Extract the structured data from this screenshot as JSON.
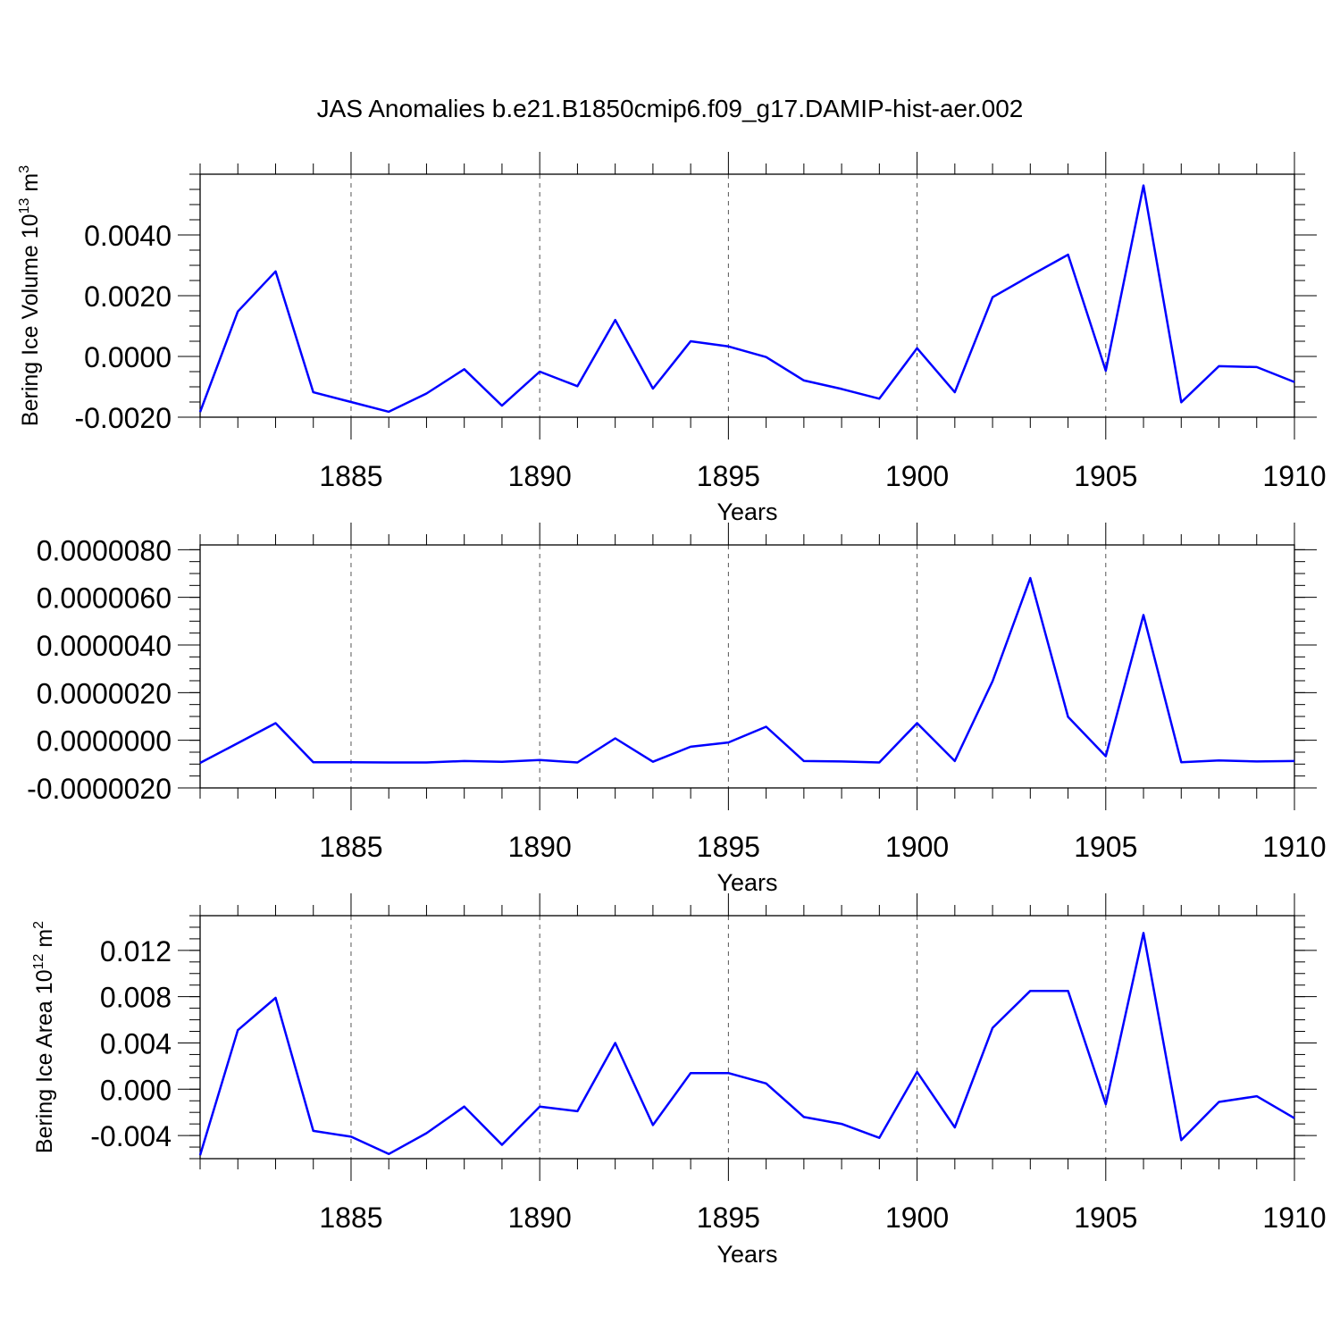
{
  "figure_title": "JAS Anomalies b.e21.B1850cmip6.f09_g17.DAMIP-hist-aer.002",
  "colors": {
    "line": "#0000ff",
    "axis": "#000000",
    "grid": "#555555"
  },
  "chart_data": [
    {
      "type": "line",
      "title": "JAS Anomalies b.e21.B1850cmip6.f09_g17.DAMIP-hist-aer.002",
      "xlabel": "Years",
      "ylabel_main": "Bering Ice Volume 10",
      "ylabel_exp": "13",
      "ylabel_unit": " m",
      "ylabel_unit_exp": "3",
      "xlim": [
        1881,
        1910
      ],
      "ylim": [
        -0.002,
        0.006
      ],
      "xticks": [
        1885,
        1890,
        1895,
        1900,
        1905,
        1910
      ],
      "xtick_labels": [
        "1885",
        "1890",
        "1895",
        "1900",
        "1905",
        "1910"
      ],
      "yticks": [
        -0.002,
        0.0,
        0.002,
        0.004
      ],
      "ytick_labels": [
        "-0.0020",
        "0.0000",
        "0.0020",
        "0.0040"
      ],
      "y_minor_step": 0.0005,
      "grid": "vertical-dashed",
      "x": [
        1881,
        1882,
        1883,
        1884,
        1885,
        1886,
        1887,
        1888,
        1889,
        1890,
        1891,
        1892,
        1893,
        1894,
        1895,
        1896,
        1897,
        1898,
        1899,
        1900,
        1901,
        1902,
        1903,
        1904,
        1905,
        1906,
        1907,
        1908,
        1909,
        1910
      ],
      "values": [
        -0.00183,
        0.00148,
        0.0028,
        -0.00118,
        -0.0015,
        -0.00182,
        -0.00122,
        -0.00042,
        -0.00162,
        -0.0005,
        -0.00098,
        0.0012,
        -0.00106,
        0.0005,
        0.00033,
        -2e-05,
        -0.00079,
        -0.00107,
        -0.00139,
        0.00027,
        -0.00118,
        0.00195,
        0.00266,
        0.00335,
        -0.00047,
        0.00563,
        -0.00151,
        -0.00032,
        -0.00035,
        -0.00084
      ]
    },
    {
      "type": "line",
      "title": "",
      "xlabel": "Years",
      "ylabel_main": "",
      "ylabel_exp": "",
      "ylabel_unit": "",
      "ylabel_unit_exp": "",
      "xlim": [
        1881,
        1910
      ],
      "ylim": [
        -2e-06,
        8.2e-06
      ],
      "xticks": [
        1885,
        1890,
        1895,
        1900,
        1905,
        1910
      ],
      "xtick_labels": [
        "1885",
        "1890",
        "1895",
        "1900",
        "1905",
        "1910"
      ],
      "yticks": [
        -2e-06,
        0.0,
        2e-06,
        4e-06,
        6e-06,
        8e-06
      ],
      "ytick_labels": [
        "-0.0000020",
        "0.0000000",
        "0.0000020",
        "0.0000040",
        "0.0000060",
        "0.0000080"
      ],
      "y_minor_step": 5e-07,
      "grid": "vertical-dashed",
      "x": [
        1881,
        1882,
        1883,
        1884,
        1885,
        1886,
        1887,
        1888,
        1889,
        1890,
        1891,
        1892,
        1893,
        1894,
        1895,
        1896,
        1897,
        1898,
        1899,
        1900,
        1901,
        1902,
        1903,
        1904,
        1905,
        1906,
        1907,
        1908,
        1909,
        1910
      ],
      "values": [
        -9.5e-07,
        -1.2e-07,
        7.2e-07,
        -9.2e-07,
        -9.2e-07,
        -9.3e-07,
        -9.3e-07,
        -8.7e-07,
        -9e-07,
        -8.3e-07,
        -9.3e-07,
        8e-08,
        -9e-07,
        -2.7e-07,
        -9e-08,
        5.7e-07,
        -8.7e-07,
        -8.9e-07,
        -9.3e-07,
        7.2e-07,
        -8.7e-07,
        2.48e-06,
        6.81e-06,
        9.8e-07,
        -6.7e-07,
        5.26e-06,
        -9.2e-07,
        -8.5e-07,
        -8.9e-07,
        -8.7e-07
      ]
    },
    {
      "type": "line",
      "title": "",
      "xlabel": "Years",
      "ylabel_main": "Bering Ice Area 10",
      "ylabel_exp": "12",
      "ylabel_unit": " m",
      "ylabel_unit_exp": "2",
      "xlim": [
        1881,
        1910
      ],
      "ylim": [
        -0.006,
        0.015
      ],
      "xticks": [
        1885,
        1890,
        1895,
        1900,
        1905,
        1910
      ],
      "xtick_labels": [
        "1885",
        "1890",
        "1895",
        "1900",
        "1905",
        "1910"
      ],
      "yticks": [
        -0.004,
        0.0,
        0.004,
        0.008,
        0.012
      ],
      "ytick_labels": [
        "-0.004",
        "0.000",
        "0.004",
        "0.008",
        "0.012"
      ],
      "y_minor_step": 0.001,
      "grid": "vertical-dashed",
      "x": [
        1881,
        1882,
        1883,
        1884,
        1885,
        1886,
        1887,
        1888,
        1889,
        1890,
        1891,
        1892,
        1893,
        1894,
        1895,
        1896,
        1897,
        1898,
        1899,
        1900,
        1901,
        1902,
        1903,
        1904,
        1905,
        1906,
        1907,
        1908,
        1909,
        1910
      ],
      "values": [
        -0.0057,
        0.0051,
        0.0079,
        -0.0036,
        -0.0041,
        -0.0056,
        -0.0038,
        -0.0015,
        -0.0048,
        -0.0015,
        -0.0019,
        0.004,
        -0.0031,
        0.0014,
        0.0014,
        0.0005,
        -0.0024,
        -0.003,
        -0.0042,
        0.0015,
        -0.0033,
        0.0053,
        0.0085,
        0.0085,
        -0.0013,
        0.0135,
        -0.0044,
        -0.0011,
        -0.0006,
        -0.0025
      ]
    }
  ]
}
